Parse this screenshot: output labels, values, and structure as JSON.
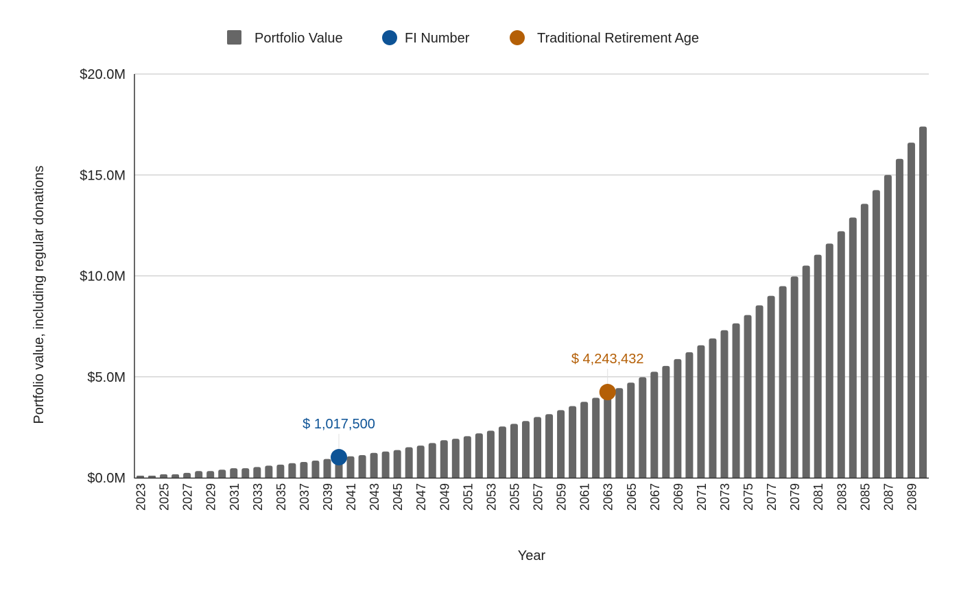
{
  "chart_data": {
    "type": "bar",
    "title": "",
    "xlabel": "Year",
    "ylabel": "Portfolio value, including regular donations",
    "ylim": [
      0,
      20000000
    ],
    "yticks": [
      "$0.0M",
      "$5.0M",
      "$10.0M",
      "$15.0M",
      "$20.0M"
    ],
    "ytick_values": [
      0,
      5000000,
      10000000,
      15000000,
      20000000
    ],
    "grid": true,
    "legend_position": "top",
    "categories": [
      2023,
      2024,
      2025,
      2026,
      2027,
      2028,
      2029,
      2030,
      2031,
      2032,
      2033,
      2034,
      2035,
      2036,
      2037,
      2038,
      2039,
      2040,
      2041,
      2042,
      2043,
      2044,
      2045,
      2046,
      2047,
      2048,
      2049,
      2050,
      2051,
      2052,
      2053,
      2054,
      2055,
      2056,
      2057,
      2058,
      2059,
      2060,
      2061,
      2062,
      2063,
      2064,
      2065,
      2066,
      2067,
      2068,
      2069,
      2070,
      2071,
      2072,
      2073,
      2074,
      2075,
      2076,
      2077,
      2078,
      2079,
      2080,
      2081,
      2082,
      2083,
      2084,
      2085,
      2086,
      2087,
      2088,
      2089,
      2090
    ],
    "xtick_labels": [
      "2023",
      "2025",
      "2027",
      "2029",
      "2031",
      "2033",
      "2035",
      "2037",
      "2039",
      "2041",
      "2043",
      "2045",
      "2047",
      "2049",
      "2051",
      "2053",
      "2055",
      "2057",
      "2059",
      "2061",
      "2063",
      "2065",
      "2067",
      "2069",
      "2071",
      "2073",
      "2075",
      "2077",
      "2079",
      "2081",
      "2083",
      "2085",
      "2087",
      "2089"
    ],
    "series": [
      {
        "name": "Portfolio Value",
        "color": "#666666",
        "values": [
          0.1,
          0.1,
          0.17,
          0.17,
          0.24,
          0.33,
          0.33,
          0.4,
          0.47,
          0.47,
          0.53,
          0.6,
          0.65,
          0.72,
          0.78,
          0.85,
          0.93,
          1.0175,
          1.06,
          1.12,
          1.23,
          1.3,
          1.37,
          1.51,
          1.59,
          1.72,
          1.86,
          1.93,
          2.06,
          2.2,
          2.33,
          2.54,
          2.67,
          2.81,
          3.01,
          3.15,
          3.35,
          3.55,
          3.76,
          3.96,
          4.243432,
          4.44,
          4.71,
          4.98,
          5.25,
          5.54,
          5.88,
          6.22,
          6.56,
          6.9,
          7.31,
          7.65,
          8.06,
          8.54,
          9.01,
          9.49,
          9.97,
          10.51,
          11.05,
          11.6,
          12.21,
          12.89,
          13.57,
          14.25,
          15.0,
          15.8,
          16.6,
          17.4
        ],
        "unit": "millions"
      },
      {
        "name": "FI Number",
        "color": "#0d5396",
        "type": "point",
        "x": 2040,
        "y": 1017500,
        "label": "$ 1,017,500"
      },
      {
        "name": "Traditional Retirement Age",
        "color": "#b45f06",
        "type": "point",
        "x": 2063,
        "y": 4243432,
        "label": "$ 4,243,432"
      }
    ]
  }
}
